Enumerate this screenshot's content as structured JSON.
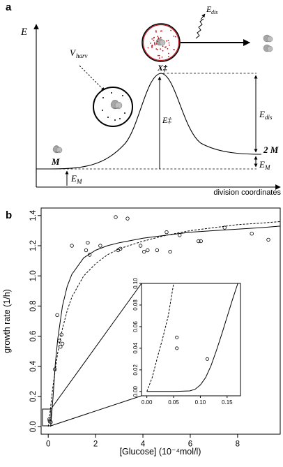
{
  "figure": {
    "panel_a": {
      "letter": "a",
      "labels": {
        "y_axis": "E",
        "x_axis": "division coordinates",
        "state_M": "M",
        "state_2M": "2 M",
        "transition": "X‡",
        "barrier": "E‡",
        "e_dis": "E",
        "e_dis_sub": "dis",
        "e_m": "E",
        "e_m_sub": "M",
        "v_harv": "V",
        "v_harv_sub": "harv",
        "emitted": "E",
        "emitted_sub": "dis"
      },
      "colors": {
        "hot_cell_dots": "#c0141c",
        "cold_cell_dots": "#000000",
        "cell_gray": "#a6a6a6"
      }
    },
    "panel_b": {
      "letter": "b",
      "chart_data": [
        {
          "type": "scatter",
          "xlabel": "[Glucose] (10⁻⁴mol/l)",
          "ylabel": "growth rate (1/h)",
          "xlim": [
            -0.3,
            9.8
          ],
          "ylim": [
            -0.05,
            1.45
          ],
          "x_ticks": [
            0,
            2,
            4,
            6,
            8
          ],
          "y_ticks": [
            0.0,
            0.2,
            0.4,
            0.6,
            0.8,
            1.0,
            1.2,
            1.4
          ],
          "x_tick_labels": [
            "0",
            "2",
            "4",
            "6",
            "8"
          ],
          "y_tick_labels": [
            "0.0",
            "0.2",
            "0.4",
            "0.6",
            "0.8",
            "1.0",
            "1.2",
            "1.4"
          ],
          "points": {
            "x": [
              0.05,
              0.06,
              0.11,
              0.28,
              0.38,
              0.47,
              0.52,
              0.56,
              0.6,
              1.0,
              1.6,
              1.67,
              1.75,
              2.2,
              2.85,
              2.95,
              3.05,
              3.35,
              3.9,
              4.05,
              4.2,
              4.6,
              5.0,
              5.15,
              5.55,
              6.35,
              6.45,
              7.45,
              8.6,
              9.3
            ],
            "y": [
              0.05,
              0.04,
              0.03,
              0.38,
              0.74,
              0.57,
              0.53,
              0.61,
              0.55,
              1.2,
              1.17,
              1.22,
              1.14,
              1.2,
              1.39,
              1.17,
              1.18,
              1.38,
              1.2,
              1.16,
              1.17,
              1.17,
              1.29,
              1.16,
              1.27,
              1.23,
              1.23,
              1.32,
              1.28,
              1.24
            ]
          },
          "curves": [
            {
              "style": "solid",
              "x": [
                0.1,
                0.2,
                0.3,
                0.4,
                0.6,
                0.8,
                1.0,
                1.5,
                2.0,
                2.5,
                3.0,
                4.0,
                5.0,
                6.0,
                7.0,
                8.0,
                9.0,
                9.8
              ],
              "y": [
                0.0,
                0.19,
                0.42,
                0.58,
                0.8,
                0.93,
                1.01,
                1.12,
                1.17,
                1.2,
                1.22,
                1.25,
                1.27,
                1.29,
                1.3,
                1.31,
                1.32,
                1.33
              ]
            },
            {
              "style": "dashed",
              "x": [
                0.0,
                0.1,
                0.2,
                0.3,
                0.4,
                0.6,
                0.8,
                1.0,
                1.5,
                2.0,
                2.5,
                3.0,
                4.0,
                5.0,
                6.0,
                7.0,
                8.0,
                9.0,
                9.8
              ],
              "y": [
                0.0,
                0.13,
                0.27,
                0.38,
                0.49,
                0.65,
                0.77,
                0.86,
                1.0,
                1.08,
                1.14,
                1.18,
                1.23,
                1.27,
                1.3,
                1.32,
                1.34,
                1.35,
                1.36
              ]
            }
          ]
        },
        {
          "type": "scatter",
          "role": "inset",
          "xlim": [
            -0.01,
            0.175
          ],
          "ylim": [
            -0.004,
            0.1
          ],
          "x_ticks": [
            0.0,
            0.05,
            0.1,
            0.15
          ],
          "y_ticks": [
            0.0,
            0.02,
            0.04,
            0.06,
            0.08,
            0.1
          ],
          "x_tick_labels": [
            "0.00",
            "0.05",
            "0.10",
            "0.15"
          ],
          "y_tick_labels": [
            "0.00",
            "0.02",
            "0.04",
            "0.06",
            "0.08",
            "0.10"
          ],
          "points": {
            "x": [
              0.056,
              0.056,
              0.113
            ],
            "y": [
              0.05,
              0.04,
              0.03
            ]
          },
          "curves": [
            {
              "style": "solid",
              "x": [
                0.0,
                0.05,
                0.08,
                0.09,
                0.1,
                0.11,
                0.12,
                0.13,
                0.14,
                0.15,
                0.16,
                0.17
              ],
              "y": [
                0.0,
                0.0,
                0.0005,
                0.002,
                0.006,
                0.013,
                0.024,
                0.038,
                0.053,
                0.069,
                0.085,
                0.1
              ]
            },
            {
              "style": "dashed",
              "x": [
                0.0,
                0.01,
                0.02,
                0.03,
                0.04,
                0.05
              ],
              "y": [
                0.0,
                0.013,
                0.032,
                0.05,
                0.07,
                0.1
              ]
            }
          ]
        }
      ]
    }
  }
}
